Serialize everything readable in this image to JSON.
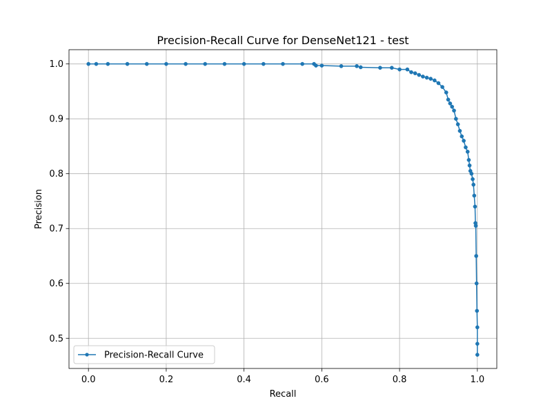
{
  "chart_data": {
    "type": "line",
    "title": "Precision-Recall Curve for DenseNet121 - test",
    "xlabel": "Recall",
    "ylabel": "Precision",
    "xlim": [
      -0.05,
      1.05
    ],
    "ylim": [
      0.445,
      1.026
    ],
    "xticks": [
      0.0,
      0.2,
      0.4,
      0.6,
      0.8,
      1.0
    ],
    "xtick_labels": [
      "0.0",
      "0.2",
      "0.4",
      "0.6",
      "0.8",
      "1.0"
    ],
    "yticks": [
      0.5,
      0.6,
      0.7,
      0.8,
      0.9,
      1.0
    ],
    "ytick_labels": [
      "0.5",
      "0.6",
      "0.7",
      "0.8",
      "0.9",
      "1.0"
    ],
    "grid": true,
    "legend_position": "lower-left",
    "series": [
      {
        "name": "Precision-Recall Curve",
        "color": "#1f77b4",
        "marker": "circle",
        "x": [
          0.0,
          0.02,
          0.05,
          0.1,
          0.15,
          0.2,
          0.25,
          0.3,
          0.35,
          0.4,
          0.45,
          0.5,
          0.55,
          0.58,
          0.585,
          0.6,
          0.65,
          0.69,
          0.7,
          0.75,
          0.78,
          0.8,
          0.82,
          0.83,
          0.84,
          0.85,
          0.86,
          0.87,
          0.88,
          0.89,
          0.9,
          0.91,
          0.92,
          0.925,
          0.93,
          0.935,
          0.94,
          0.945,
          0.95,
          0.955,
          0.96,
          0.965,
          0.97,
          0.975,
          0.978,
          0.98,
          0.982,
          0.985,
          0.988,
          0.99,
          0.992,
          0.994,
          0.995,
          0.996,
          0.997,
          0.998,
          0.999,
          1.0,
          1.0,
          1.0
        ],
        "y": [
          1.0,
          1.0,
          1.0,
          1.0,
          1.0,
          1.0,
          1.0,
          1.0,
          1.0,
          1.0,
          1.0,
          1.0,
          1.0,
          1.0,
          0.997,
          0.997,
          0.996,
          0.996,
          0.994,
          0.993,
          0.993,
          0.99,
          0.99,
          0.985,
          0.983,
          0.98,
          0.977,
          0.975,
          0.973,
          0.97,
          0.965,
          0.958,
          0.948,
          0.935,
          0.928,
          0.922,
          0.915,
          0.9,
          0.89,
          0.878,
          0.868,
          0.86,
          0.848,
          0.84,
          0.825,
          0.815,
          0.805,
          0.8,
          0.79,
          0.78,
          0.76,
          0.74,
          0.71,
          0.705,
          0.65,
          0.6,
          0.55,
          0.52,
          0.49,
          0.47
        ]
      }
    ]
  }
}
